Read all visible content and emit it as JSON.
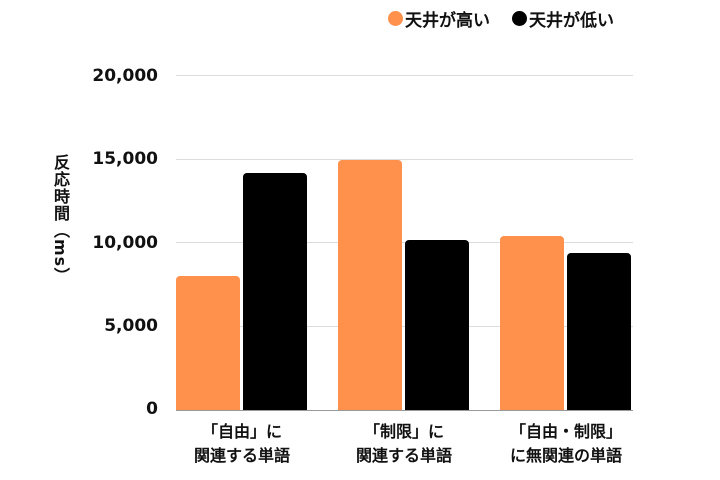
{
  "legend": [
    {
      "label": "天井が高い",
      "color": "#FF914D"
    },
    {
      "label": "天井が低い",
      "color": "#000000"
    }
  ],
  "yaxis": {
    "label": "反応時間（ms）",
    "ticks": [
      "20,000",
      "15,000",
      "10,000",
      "5,000",
      "0"
    ]
  },
  "xaxis": {
    "categories": [
      {
        "line1": "「自由」に",
        "line2": "関連する単語"
      },
      {
        "line1": "「制限」に",
        "line2": "関連する単語"
      },
      {
        "line1": "「自由・制限」",
        "line2": "に無関連の単語"
      }
    ]
  },
  "chart_data": {
    "type": "bar",
    "title": "",
    "xlabel": "",
    "ylabel": "反応時間（ms）",
    "categories": [
      "「自由」に関連する単語",
      "「制限」に関連する単語",
      "「自由・制限」に無関連の単語"
    ],
    "series": [
      {
        "name": "天井が高い",
        "color": "#FF914D",
        "values": [
          8000,
          14950,
          10400
        ]
      },
      {
        "name": "天井が低い",
        "color": "#000000",
        "values": [
          14150,
          10150,
          9400
        ]
      }
    ],
    "ylim": [
      0,
      20000
    ],
    "yticks": [
      0,
      5000,
      10000,
      15000,
      20000
    ],
    "grid": true,
    "legend_position": "top-right"
  }
}
